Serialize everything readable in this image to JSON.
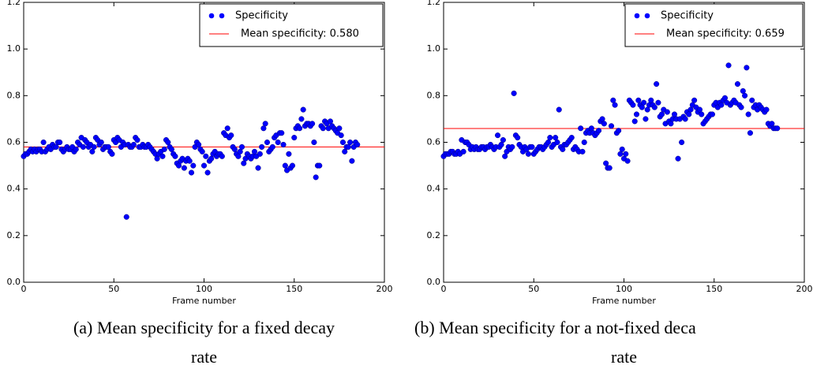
{
  "chart_data": [
    {
      "type": "scatter",
      "caption": [
        "(a) Mean specificity for a fixed decay",
        "rate"
      ],
      "xlabel": "Frame number",
      "xlim": [
        0,
        200
      ],
      "xticks": [
        0,
        50,
        100,
        150,
        200
      ],
      "ylim": [
        0,
        1.2
      ],
      "yticks": [
        {
          "value": 0,
          "label": "0.0"
        },
        0.2,
        0.4,
        0.6,
        0.8,
        {
          "value": 1,
          "label": "1.0"
        },
        1.2
      ],
      "legend": "upper right",
      "series": [
        {
          "name": "Specificity",
          "color": "#0000ff",
          "x": [
            0,
            1,
            2,
            3,
            4,
            5,
            6,
            7,
            8,
            9,
            10,
            11,
            12,
            13,
            14,
            15,
            16,
            17,
            18,
            19,
            20,
            21,
            22,
            23,
            24,
            25,
            26,
            27,
            28,
            29,
            30,
            31,
            32,
            33,
            34,
            35,
            36,
            37,
            38,
            39,
            40,
            41,
            42,
            43,
            44,
            45,
            46,
            47,
            48,
            49,
            50,
            51,
            52,
            53,
            54,
            55,
            56,
            57,
            58,
            59,
            60,
            61,
            62,
            63,
            64,
            65,
            66,
            67,
            68,
            69,
            70,
            71,
            72,
            73,
            74,
            75,
            76,
            77,
            78,
            79,
            80,
            81,
            82,
            83,
            84,
            85,
            86,
            87,
            88,
            89,
            90,
            91,
            92,
            93,
            94,
            95,
            96,
            97,
            98,
            99,
            100,
            101,
            102,
            103,
            104,
            105,
            106,
            107,
            108,
            109,
            110,
            111,
            112,
            113,
            114,
            115,
            116,
            117,
            118,
            119,
            120,
            121,
            122,
            123,
            124,
            125,
            126,
            127,
            128,
            129,
            130,
            131,
            132,
            133,
            134,
            135,
            136,
            137,
            138,
            139,
            140,
            141,
            142,
            143,
            144,
            145,
            146,
            147,
            148,
            149,
            150,
            151,
            152,
            153,
            154,
            155,
            156,
            157,
            158,
            159,
            160,
            161,
            162,
            163,
            164,
            165,
            166,
            167,
            168,
            169,
            170,
            171,
            172,
            173,
            174,
            175,
            176,
            177,
            178,
            179,
            180,
            181,
            182,
            183,
            184,
            185
          ],
          "values": [
            0.54,
            0.55,
            0.55,
            0.56,
            0.57,
            0.56,
            0.57,
            0.56,
            0.57,
            0.57,
            0.56,
            0.6,
            0.56,
            0.57,
            0.58,
            0.57,
            0.59,
            0.58,
            0.58,
            0.6,
            0.6,
            0.57,
            0.56,
            0.57,
            0.58,
            0.57,
            0.57,
            0.58,
            0.56,
            0.57,
            0.6,
            0.59,
            0.62,
            0.58,
            0.61,
            0.6,
            0.58,
            0.59,
            0.56,
            0.58,
            0.62,
            0.61,
            0.59,
            0.6,
            0.57,
            0.58,
            0.58,
            0.58,
            0.56,
            0.55,
            0.61,
            0.6,
            0.62,
            0.61,
            0.58,
            0.6,
            0.59,
            0.28,
            0.59,
            0.58,
            0.58,
            0.59,
            0.62,
            0.61,
            0.58,
            0.58,
            0.59,
            0.58,
            0.58,
            0.59,
            0.58,
            0.57,
            0.56,
            0.55,
            0.53,
            0.55,
            0.56,
            0.54,
            0.57,
            0.61,
            0.6,
            0.58,
            0.57,
            0.55,
            0.54,
            0.51,
            0.5,
            0.52,
            0.53,
            0.49,
            0.52,
            0.53,
            0.52,
            0.47,
            0.5,
            0.58,
            0.6,
            0.59,
            0.57,
            0.56,
            0.5,
            0.54,
            0.47,
            0.52,
            0.53,
            0.55,
            0.56,
            0.54,
            0.55,
            0.55,
            0.54,
            0.64,
            0.63,
            0.66,
            0.62,
            0.63,
            0.58,
            0.57,
            0.55,
            0.54,
            0.56,
            0.58,
            0.51,
            0.53,
            0.55,
            0.54,
            0.53,
            0.54,
            0.56,
            0.54,
            0.49,
            0.55,
            0.58,
            0.66,
            0.68,
            0.6,
            0.56,
            0.57,
            0.58,
            0.62,
            0.63,
            0.6,
            0.64,
            0.64,
            0.59,
            0.5,
            0.48,
            0.55,
            0.49,
            0.5,
            0.62,
            0.66,
            0.67,
            0.66,
            0.7,
            0.74,
            0.67,
            0.68,
            0.68,
            0.67,
            0.68,
            0.6,
            0.45,
            0.5,
            0.5,
            0.67,
            0.66,
            0.69,
            0.68,
            0.66,
            0.69,
            0.67,
            0.66,
            0.65,
            0.64,
            0.66,
            0.63,
            0.6,
            0.56,
            0.58,
            0.58,
            0.6,
            0.52,
            0.58,
            0.6,
            0.59
          ]
        }
      ],
      "hline": {
        "name": "Mean specificity: 0.580",
        "value": 0.58,
        "color": "#ff0000"
      }
    },
    {
      "type": "scatter",
      "caption": [
        "(b) Mean specificity for a not-fixed deca",
        "rate"
      ],
      "xlabel": "Frame number",
      "xlim": [
        0,
        200
      ],
      "xticks": [
        0,
        50,
        100,
        150,
        200
      ],
      "ylim": [
        0,
        1.2
      ],
      "yticks": [
        {
          "value": 0,
          "label": "0.0"
        },
        0.2,
        0.4,
        0.6,
        0.8,
        {
          "value": 1,
          "label": "1.0"
        },
        1.2
      ],
      "legend": "upper right",
      "series": [
        {
          "name": "Specificity",
          "color": "#0000ff",
          "x": [
            0,
            1,
            2,
            3,
            4,
            5,
            6,
            7,
            8,
            9,
            10,
            11,
            12,
            13,
            14,
            15,
            16,
            17,
            18,
            19,
            20,
            21,
            22,
            23,
            24,
            25,
            26,
            27,
            28,
            29,
            30,
            31,
            32,
            33,
            34,
            35,
            36,
            37,
            38,
            39,
            40,
            41,
            42,
            43,
            44,
            45,
            46,
            47,
            48,
            49,
            50,
            51,
            52,
            53,
            54,
            55,
            56,
            57,
            58,
            59,
            60,
            61,
            62,
            63,
            64,
            65,
            66,
            67,
            68,
            69,
            70,
            71,
            72,
            73,
            74,
            75,
            76,
            77,
            78,
            79,
            80,
            81,
            82,
            83,
            84,
            85,
            86,
            87,
            88,
            89,
            90,
            91,
            92,
            93,
            94,
            95,
            96,
            97,
            98,
            99,
            100,
            101,
            102,
            103,
            104,
            105,
            106,
            107,
            108,
            109,
            110,
            111,
            112,
            113,
            114,
            115,
            116,
            117,
            118,
            119,
            120,
            121,
            122,
            123,
            124,
            125,
            126,
            127,
            128,
            129,
            130,
            131,
            132,
            133,
            134,
            135,
            136,
            137,
            138,
            139,
            140,
            141,
            142,
            143,
            144,
            145,
            146,
            147,
            148,
            149,
            150,
            151,
            152,
            153,
            154,
            155,
            156,
            157,
            158,
            159,
            160,
            161,
            162,
            163,
            164,
            165,
            166,
            167,
            168,
            169,
            170,
            171,
            172,
            173,
            174,
            175,
            176,
            177,
            178,
            179,
            180,
            181,
            182,
            183,
            184,
            185
          ],
          "values": [
            0.54,
            0.55,
            0.55,
            0.55,
            0.56,
            0.56,
            0.55,
            0.55,
            0.56,
            0.55,
            0.61,
            0.56,
            0.6,
            0.6,
            0.59,
            0.57,
            0.58,
            0.57,
            0.58,
            0.57,
            0.57,
            0.58,
            0.58,
            0.57,
            0.58,
            0.58,
            0.59,
            0.58,
            0.57,
            0.58,
            0.63,
            0.58,
            0.59,
            0.61,
            0.54,
            0.56,
            0.58,
            0.57,
            0.58,
            0.81,
            0.63,
            0.62,
            0.59,
            0.58,
            0.56,
            0.58,
            0.57,
            0.55,
            0.58,
            0.58,
            0.55,
            0.56,
            0.57,
            0.58,
            0.58,
            0.57,
            0.58,
            0.59,
            0.6,
            0.62,
            0.58,
            0.59,
            0.62,
            0.6,
            0.74,
            0.58,
            0.57,
            0.59,
            0.59,
            0.6,
            0.61,
            0.62,
            0.57,
            0.58,
            0.57,
            0.56,
            0.66,
            0.56,
            0.6,
            0.64,
            0.65,
            0.64,
            0.66,
            0.64,
            0.63,
            0.64,
            0.65,
            0.69,
            0.7,
            0.68,
            0.51,
            0.49,
            0.49,
            0.67,
            0.78,
            0.76,
            0.64,
            0.65,
            0.55,
            0.57,
            0.53,
            0.55,
            0.52,
            0.78,
            0.77,
            0.76,
            0.69,
            0.72,
            0.78,
            0.76,
            0.75,
            0.77,
            0.7,
            0.74,
            0.76,
            0.78,
            0.76,
            0.75,
            0.85,
            0.77,
            0.71,
            0.72,
            0.74,
            0.68,
            0.73,
            0.69,
            0.68,
            0.7,
            0.72,
            0.7,
            0.53,
            0.7,
            0.6,
            0.71,
            0.7,
            0.73,
            0.72,
            0.74,
            0.76,
            0.78,
            0.75,
            0.73,
            0.74,
            0.72,
            0.68,
            0.69,
            0.7,
            0.71,
            0.72,
            0.72,
            0.76,
            0.77,
            0.75,
            0.77,
            0.76,
            0.78,
            0.79,
            0.77,
            0.93,
            0.76,
            0.77,
            0.78,
            0.77,
            0.85,
            0.76,
            0.75,
            0.82,
            0.8,
            0.92,
            0.72,
            0.64,
            0.78,
            0.75,
            0.76,
            0.74,
            0.76,
            0.75,
            0.74,
            0.73,
            0.74,
            0.68,
            0.67,
            0.68,
            0.66,
            0.66,
            0.66
          ]
        }
      ],
      "hline": {
        "name": "Mean specificity: 0.659",
        "value": 0.659,
        "color": "#ff0000"
      }
    }
  ]
}
